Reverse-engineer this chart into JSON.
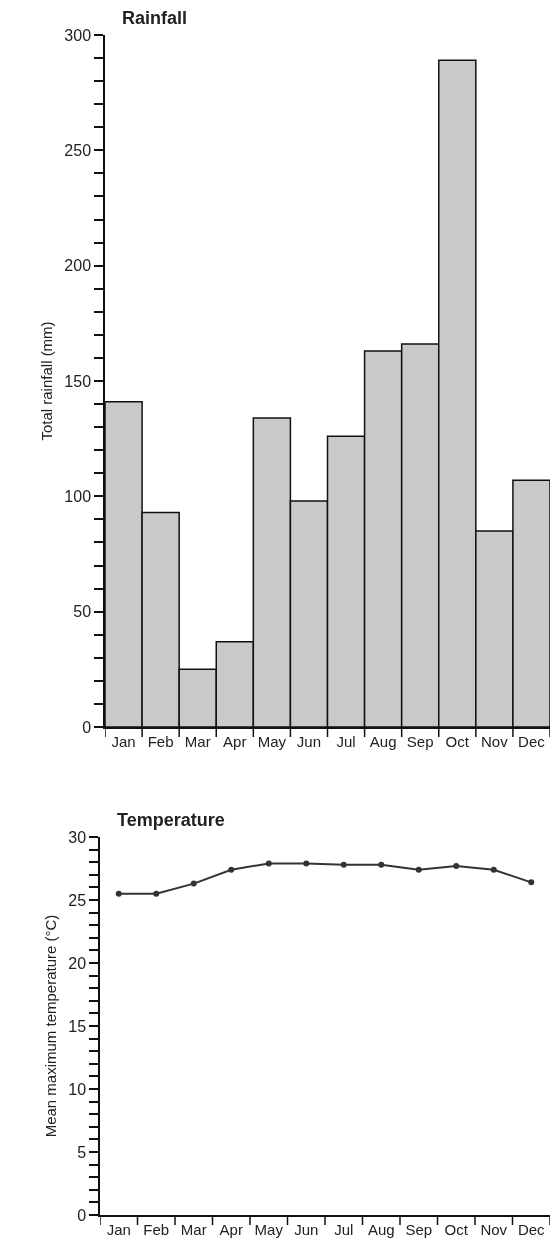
{
  "chart_data": [
    {
      "type": "bar",
      "title": "Rainfall",
      "ylabel": "Total rainfall (mm)",
      "categories": [
        "Jan",
        "Feb",
        "Mar",
        "Apr",
        "May",
        "Jun",
        "Jul",
        "Aug",
        "Sep",
        "Oct",
        "Nov",
        "Dec"
      ],
      "values": [
        141,
        93,
        25,
        37,
        134,
        98,
        126,
        163,
        166,
        289,
        85,
        107
      ],
      "color": "#c9c9c9",
      "ylim": [
        0,
        300
      ],
      "yticks": [
        0,
        {
          "value": 10,
          "label": null
        },
        {
          "value": 20,
          "label": null
        },
        {
          "value": 30,
          "label": null
        },
        {
          "value": 40,
          "label": null
        },
        50,
        {
          "value": 60,
          "label": null
        },
        {
          "value": 70,
          "label": null
        },
        {
          "value": 80,
          "label": null
        },
        {
          "value": 90,
          "label": null
        },
        100,
        {
          "value": 110,
          "label": null
        },
        {
          "value": 120,
          "label": null
        },
        {
          "value": 130,
          "label": null
        },
        {
          "value": 140,
          "label": null
        },
        150,
        {
          "value": 160,
          "label": null
        },
        {
          "value": 170,
          "label": null
        },
        {
          "value": 180,
          "label": null
        },
        {
          "value": 190,
          "label": null
        },
        200,
        {
          "value": 210,
          "label": null
        },
        {
          "value": 220,
          "label": null
        },
        {
          "value": 230,
          "label": null
        },
        {
          "value": 240,
          "label": null
        },
        250,
        {
          "value": 260,
          "label": null
        },
        {
          "value": 270,
          "label": null
        },
        {
          "value": 280,
          "label": null
        },
        {
          "value": 290,
          "label": null
        },
        300
      ]
    },
    {
      "type": "line",
      "title": "Temperature",
      "ylabel": "Mean maximum temperature (°C)",
      "categories": [
        "Jan",
        "Feb",
        "Mar",
        "Apr",
        "May",
        "Jun",
        "Jul",
        "Aug",
        "Sep",
        "Oct",
        "Nov",
        "Dec"
      ],
      "values": [
        25.5,
        25.5,
        26.3,
        27.4,
        27.9,
        27.9,
        27.8,
        27.8,
        27.4,
        27.7,
        27.4,
        26.4
      ],
      "color": "#333333",
      "marker": "circle",
      "line_style": "solid",
      "ylim": [
        0,
        30
      ],
      "yticks": [
        0,
        {
          "value": 1,
          "label": null
        },
        {
          "value": 2,
          "label": null
        },
        {
          "value": 3,
          "label": null
        },
        {
          "value": 4,
          "label": null
        },
        5,
        {
          "value": 6,
          "label": null
        },
        {
          "value": 7,
          "label": null
        },
        {
          "value": 8,
          "label": null
        },
        {
          "value": 9,
          "label": null
        },
        10,
        {
          "value": 11,
          "label": null
        },
        {
          "value": 12,
          "label": null
        },
        {
          "value": 13,
          "label": null
        },
        {
          "value": 14,
          "label": null
        },
        15,
        {
          "value": 16,
          "label": null
        },
        {
          "value": 17,
          "label": null
        },
        {
          "value": 18,
          "label": null
        },
        {
          "value": 19,
          "label": null
        },
        20,
        {
          "value": 21,
          "label": null
        },
        {
          "value": 22,
          "label": null
        },
        {
          "value": 23,
          "label": null
        },
        {
          "value": 24,
          "label": null
        },
        25,
        {
          "value": 26,
          "label": null
        },
        {
          "value": 27,
          "label": null
        },
        {
          "value": 28,
          "label": null
        },
        {
          "value": 29,
          "label": null
        },
        30
      ]
    }
  ]
}
